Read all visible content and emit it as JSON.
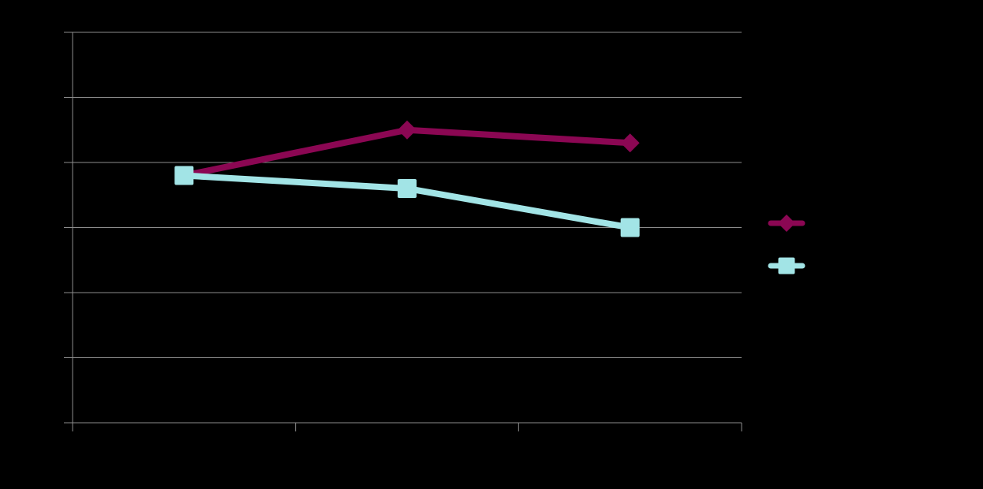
{
  "chart_data": {
    "type": "line",
    "categories": [
      "",
      "",
      ""
    ],
    "series": [
      {
        "values": [
          3.8,
          4.5,
          4.3
        ],
        "color": "#8B0753",
        "marker": "diamond"
      },
      {
        "values": [
          3.8,
          3.6,
          3.0
        ],
        "color": "#A2E4E6",
        "marker": "square"
      }
    ],
    "ylim": [
      0,
      6
    ],
    "ytick_step": 1,
    "grid": true,
    "legend": "right",
    "background": "#000000",
    "gridline_color": "#8C8C8C"
  }
}
